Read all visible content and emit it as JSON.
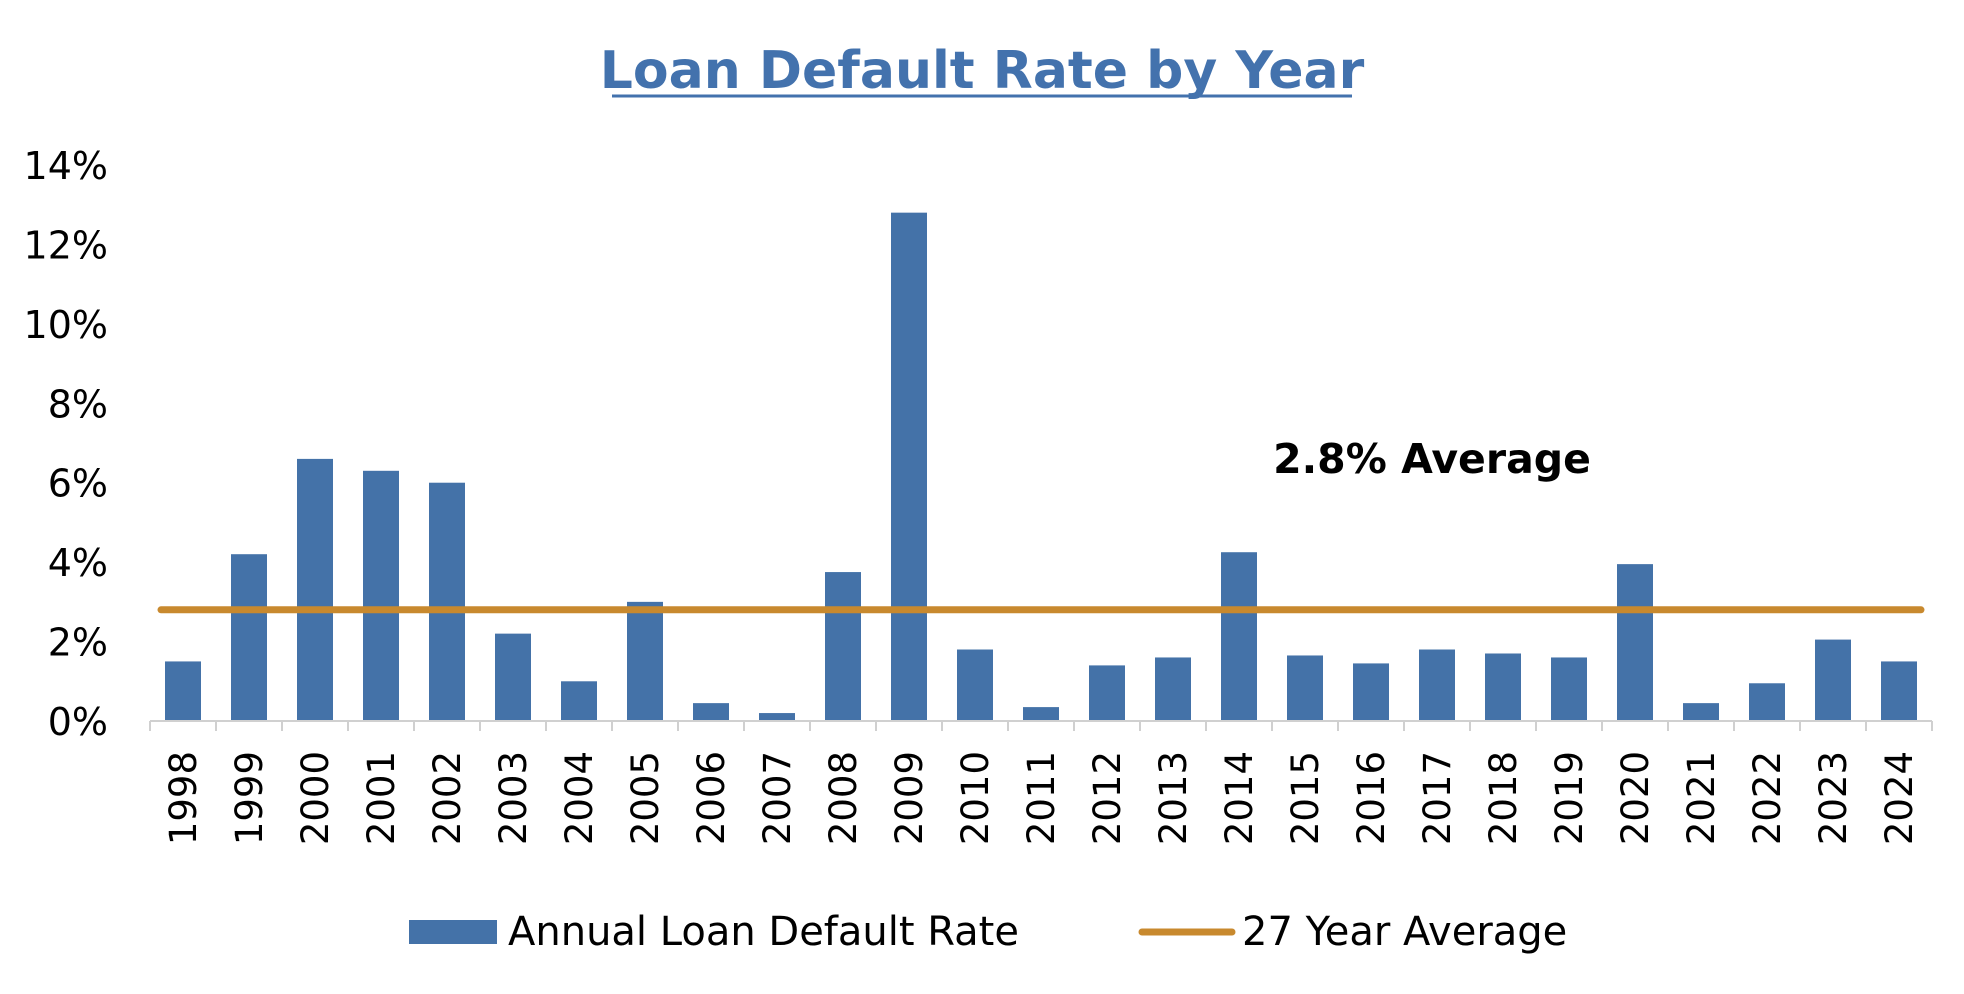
{
  "chart_data": {
    "type": "bar",
    "title": "Loan Default Rate by Year",
    "categories": [
      "1998",
      "1999",
      "2000",
      "2001",
      "2002",
      "2003",
      "2004",
      "2005",
      "2006",
      "2007",
      "2008",
      "2009",
      "2010",
      "2011",
      "2012",
      "2013",
      "2014",
      "2015",
      "2016",
      "2017",
      "2018",
      "2019",
      "2020",
      "2021",
      "2022",
      "2023",
      "2024"
    ],
    "series": [
      {
        "name": "Annual Loan Default Rate",
        "type": "bar",
        "color": "#4472a8",
        "values": [
          1.5,
          4.2,
          6.6,
          6.3,
          6.0,
          2.2,
          1.0,
          3.0,
          0.45,
          0.2,
          3.75,
          12.8,
          1.8,
          0.35,
          1.4,
          1.6,
          4.25,
          1.65,
          1.45,
          1.8,
          1.7,
          1.6,
          3.95,
          0.45,
          0.95,
          2.05,
          1.5
        ]
      },
      {
        "name": "27 Year Average",
        "type": "line",
        "color": "#c8892e",
        "value": 2.8
      }
    ],
    "ylim": [
      0,
      14
    ],
    "yticks": [
      0,
      2,
      4,
      6,
      8,
      10,
      12,
      14
    ],
    "ytick_labels": [
      "0%",
      "2%",
      "4%",
      "6%",
      "8%",
      "10%",
      "12%",
      "14%"
    ],
    "xlabel": "",
    "ylabel": "",
    "grid": false,
    "legend_position": "bottom",
    "annotation": "2.8% Average",
    "colors": {
      "title": "#4372ad",
      "axis": "#d0d0d0",
      "text": "#000000"
    }
  }
}
